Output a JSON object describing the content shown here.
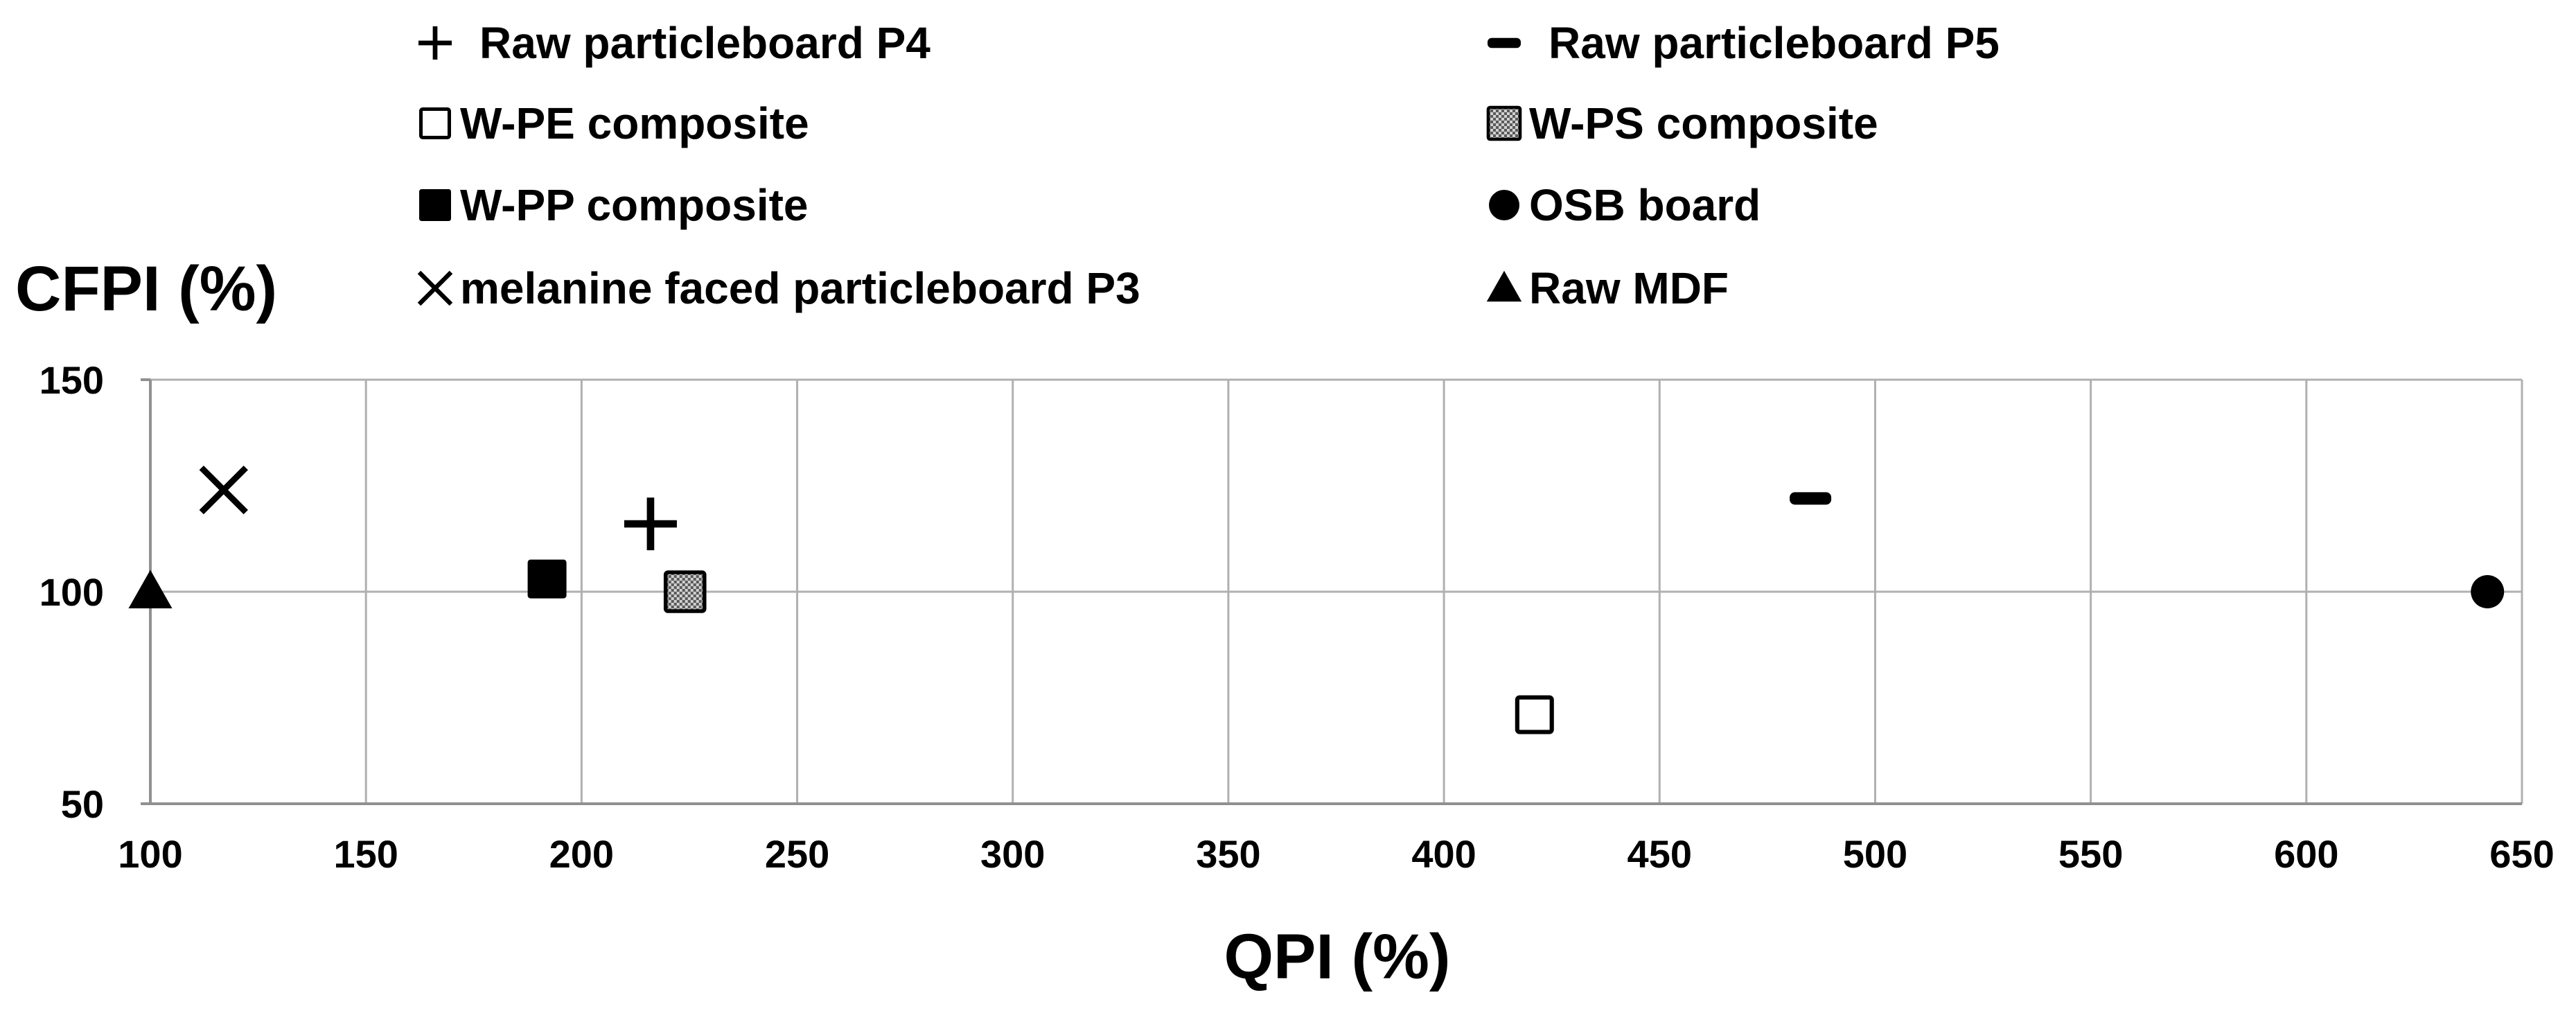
{
  "chart_data": {
    "type": "scatter",
    "title": "",
    "xlabel": "QPI (%)",
    "ylabel": "CFPI (%)",
    "xlim": [
      100,
      650
    ],
    "ylim": [
      50,
      150
    ],
    "xticks": [
      100,
      150,
      200,
      250,
      300,
      350,
      400,
      450,
      500,
      550,
      600,
      650
    ],
    "yticks": [
      50,
      100,
      150
    ],
    "x_tick_labels": [
      "100",
      "150",
      "200",
      "250",
      "300",
      "350",
      "400",
      "450",
      "500",
      "550",
      "600",
      "650"
    ],
    "y_tick_labels": [
      "50",
      "100",
      "150"
    ],
    "grid": {
      "vertical": true,
      "horizontal": true
    },
    "legend_position": "top",
    "series": [
      {
        "name": "Raw particleboard P4",
        "marker": "plus",
        "x": [
          216
        ],
        "y": [
          116
        ]
      },
      {
        "name": "Raw particleboard P5",
        "marker": "dash",
        "x": [
          485
        ],
        "y": [
          122
        ]
      },
      {
        "name": "W-PE composite",
        "marker": "square-open",
        "x": [
          421
        ],
        "y": [
          71
        ]
      },
      {
        "name": "W-PS composite",
        "marker": "square-checkered",
        "x": [
          224
        ],
        "y": [
          100
        ]
      },
      {
        "name": "W-PP composite",
        "marker": "square-filled",
        "x": [
          192
        ],
        "y": [
          103
        ]
      },
      {
        "name": "OSB board",
        "marker": "circle",
        "x": [
          642
        ],
        "y": [
          100
        ]
      },
      {
        "name": "melanine faced particleboard P3",
        "marker": "x",
        "x": [
          117
        ],
        "y": [
          124
        ]
      },
      {
        "name": "Raw MDF",
        "marker": "triangle",
        "x": [
          100
        ],
        "y": [
          100
        ]
      }
    ],
    "colors": {
      "marker": "#000000",
      "grid": "#b0b0b0",
      "axis": "#909090",
      "background": "#ffffff"
    }
  }
}
